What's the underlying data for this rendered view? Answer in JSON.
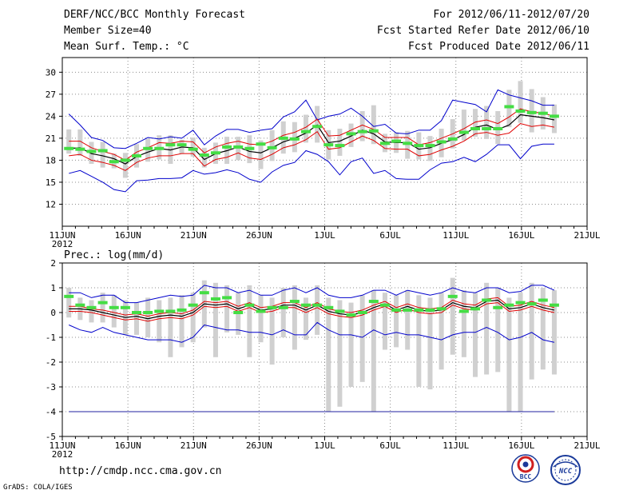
{
  "header": {
    "title": "DERF/NCC/BCC Monthly Forecast",
    "member_size": "Member Size=40",
    "variable": "Mean Surf. Temp.: °C",
    "period": "For 2012/06/11-2012/07/20",
    "started": "Fcst Started Refer Date 2012/06/10",
    "produced": "Fcst Produced Date 2012/06/11"
  },
  "footer": {
    "url": "http://cmdp.ncc.cma.gov.cn",
    "credit": "GrADS: COLA/IGES",
    "logo_bcc": "BCC",
    "logo_ncc": "NCC"
  },
  "colors": {
    "mean": "#000000",
    "spread": "#e00000",
    "extremes": "#0000cc",
    "obs": "#44dd44",
    "box": "#d0d0d0",
    "grid": "#8c8c8c"
  },
  "chart_data": [
    {
      "type": "line",
      "name": "temperature",
      "title": "Mean Surf. Temp.: °C",
      "x_labels": [
        "11JUN",
        "16JUN",
        "21JUN",
        "26JUN",
        "1JUL",
        "6JUL",
        "11JUL",
        "16JUL",
        "21JUL"
      ],
      "x_year": "2012",
      "xlim": [
        0,
        40
      ],
      "ylim": [
        9,
        32
      ],
      "yticks": [
        12,
        15,
        18,
        21,
        24,
        27,
        30
      ],
      "series": [
        {
          "name": "mean",
          "values": [
            19.6,
            19.7,
            18.9,
            18.6,
            18.2,
            17.5,
            18.5,
            19.1,
            19.6,
            19.4,
            19.8,
            19.7,
            18.1,
            18.9,
            19.3,
            19.8,
            19.2,
            19.0,
            19.7,
            20.5,
            21.0,
            21.7,
            22.8,
            20.4,
            20.6,
            21.3,
            22.1,
            21.6,
            20.5,
            20.4,
            20.4,
            19.5,
            19.7,
            20.3,
            20.8,
            21.5,
            22.5,
            22.8,
            22.2,
            22.8,
            24.2,
            24.0,
            23.8,
            23.5
          ]
        },
        {
          "name": "upper",
          "values": [
            20.6,
            20.6,
            19.7,
            19.2,
            18.8,
            18.0,
            19.1,
            19.7,
            20.4,
            20.3,
            20.6,
            20.5,
            19.0,
            19.8,
            20.3,
            20.6,
            20.2,
            20.1,
            20.6,
            21.4,
            21.8,
            22.5,
            23.6,
            21.3,
            21.4,
            22.1,
            22.8,
            22.2,
            21.1,
            21.1,
            21.1,
            20.1,
            20.4,
            21.0,
            21.6,
            22.3,
            23.2,
            23.5,
            23.0,
            23.9,
            25.0,
            24.6,
            24.4,
            24.0
          ]
        },
        {
          "name": "lower",
          "values": [
            18.6,
            18.8,
            18.0,
            17.7,
            17.3,
            16.6,
            17.7,
            18.3,
            18.6,
            18.6,
            18.9,
            18.9,
            17.2,
            18.1,
            18.4,
            19.0,
            18.3,
            18.1,
            18.8,
            19.7,
            20.1,
            20.8,
            21.9,
            19.5,
            19.7,
            20.5,
            21.3,
            20.7,
            19.6,
            19.5,
            19.5,
            18.6,
            18.8,
            19.4,
            19.9,
            20.6,
            21.6,
            21.8,
            21.4,
            21.7,
            23.0,
            22.6,
            22.8,
            22.5
          ]
        },
        {
          "name": "max",
          "values": [
            24.3,
            22.8,
            21.1,
            20.7,
            19.7,
            19.6,
            20.3,
            21.1,
            20.9,
            21.2,
            21.0,
            22.1,
            20.1,
            21.3,
            22.2,
            22.2,
            21.8,
            22.1,
            22.3,
            23.9,
            24.6,
            26.2,
            23.5,
            24.0,
            24.3,
            25.1,
            24.0,
            22.6,
            22.9,
            21.7,
            21.6,
            22.1,
            22.1,
            23.4,
            26.2,
            25.9,
            25.6,
            24.6,
            27.6,
            26.9,
            26.5,
            26.1,
            25.5,
            25.5
          ]
        },
        {
          "name": "min",
          "values": [
            16.2,
            16.6,
            15.8,
            15.0,
            14.0,
            13.7,
            15.2,
            15.3,
            15.5,
            15.5,
            15.6,
            16.6,
            16.1,
            16.3,
            16.7,
            16.3,
            15.4,
            15.0,
            16.4,
            17.3,
            17.7,
            19.3,
            18.8,
            17.8,
            16.0,
            17.8,
            18.3,
            16.2,
            16.6,
            15.5,
            15.4,
            15.4,
            16.7,
            17.6,
            17.8,
            18.4,
            17.8,
            18.8,
            20.1,
            20.1,
            18.2,
            19.9,
            20.2,
            20.2
          ]
        },
        {
          "name": "box_high",
          "values": [
            22.2,
            22.2,
            20.5,
            20.5,
            18.9,
            19.0,
            20.2,
            20.9,
            21.4,
            21.4,
            20.8,
            21.1,
            19.7,
            20.4,
            21.2,
            21.2,
            21.4,
            20.7,
            22.1,
            23.3,
            23.2,
            24.2,
            25.4,
            22.1,
            22.3,
            23.0,
            24.7,
            25.5,
            21.6,
            21.8,
            22.0,
            21.8,
            21.3,
            22.3,
            23.6,
            24.9,
            25.0,
            25.4,
            24.7,
            27.6,
            28.8,
            27.7,
            26.6,
            25.6
          ]
        },
        {
          "name": "box_low",
          "values": [
            18.9,
            18.6,
            17.5,
            17.0,
            16.9,
            15.6,
            17.0,
            17.8,
            18.1,
            17.5,
            18.9,
            18.5,
            17.0,
            17.5,
            17.5,
            18.0,
            17.6,
            16.8,
            17.9,
            18.9,
            19.1,
            20.4,
            20.4,
            18.1,
            18.6,
            19.8,
            20.6,
            20.2,
            19.1,
            19.0,
            18.2,
            18.1,
            17.9,
            18.4,
            19.6,
            20.7,
            21.2,
            20.9,
            20.2,
            22.5,
            23.1,
            21.8,
            22.2,
            21.7
          ]
        },
        {
          "name": "obs",
          "values": [
            19.6,
            19.5,
            19.2,
            19.3,
            17.8,
            18.0,
            18.6,
            19.6,
            19.6,
            20.1,
            20.1,
            19.5,
            18.7,
            19.0,
            19.8,
            19.8,
            19.6,
            20.2,
            19.7,
            21.0,
            20.9,
            21.9,
            22.6,
            20.1,
            20.0,
            21.6,
            21.9,
            22.0,
            20.3,
            20.6,
            20.3,
            20.0,
            20.0,
            20.5,
            20.9,
            21.8,
            22.3,
            22.3,
            22.3,
            25.3,
            24.7,
            24.5,
            24.4,
            24.0
          ]
        }
      ]
    },
    {
      "type": "line",
      "name": "precipitation",
      "title": "Prec.: log(mm/d)",
      "x_labels": [
        "11JUN",
        "16JUN",
        "21JUN",
        "26JUN",
        "1JUL",
        "6JUL",
        "11JUL",
        "16JUL",
        "21JUL"
      ],
      "x_year": "2012",
      "xlim": [
        0,
        40
      ],
      "ylim": [
        -5,
        2
      ],
      "yticks": [
        -5,
        -4,
        -3,
        -2,
        -1,
        0,
        1,
        2
      ],
      "series": [
        {
          "name": "mean",
          "values": [
            0.15,
            0.15,
            0.1,
            0.0,
            -0.1,
            -0.2,
            -0.15,
            -0.25,
            -0.15,
            -0.1,
            -0.15,
            0.0,
            0.35,
            0.3,
            0.35,
            0.15,
            0.3,
            0.1,
            0.15,
            0.3,
            0.3,
            0.1,
            0.3,
            0.05,
            -0.05,
            -0.1,
            0.0,
            0.2,
            0.35,
            0.1,
            0.25,
            0.1,
            0.05,
            0.1,
            0.4,
            0.25,
            0.2,
            0.45,
            0.5,
            0.15,
            0.2,
            0.35,
            0.2,
            0.1
          ]
        },
        {
          "name": "upper",
          "values": [
            0.25,
            0.25,
            0.15,
            0.1,
            0.0,
            -0.1,
            -0.05,
            -0.15,
            -0.05,
            0.0,
            -0.05,
            0.1,
            0.45,
            0.4,
            0.45,
            0.25,
            0.4,
            0.2,
            0.25,
            0.4,
            0.4,
            0.2,
            0.4,
            0.15,
            0.05,
            0.0,
            0.1,
            0.3,
            0.45,
            0.2,
            0.35,
            0.2,
            0.15,
            0.2,
            0.5,
            0.35,
            0.3,
            0.55,
            0.6,
            0.25,
            0.3,
            0.45,
            0.3,
            0.2
          ]
        },
        {
          "name": "lower",
          "values": [
            0.05,
            0.05,
            0.0,
            -0.1,
            -0.2,
            -0.3,
            -0.25,
            -0.35,
            -0.25,
            -0.2,
            -0.25,
            -0.1,
            0.25,
            0.2,
            0.25,
            0.05,
            0.2,
            0.0,
            0.05,
            0.2,
            0.2,
            0.0,
            0.2,
            -0.05,
            -0.15,
            -0.2,
            -0.1,
            0.1,
            0.25,
            0.0,
            0.15,
            0.0,
            -0.05,
            0.0,
            0.3,
            0.15,
            0.1,
            0.35,
            0.4,
            0.05,
            0.1,
            0.25,
            0.1,
            0.0
          ]
        },
        {
          "name": "max",
          "values": [
            0.8,
            0.8,
            0.6,
            0.7,
            0.7,
            0.4,
            0.4,
            0.5,
            0.6,
            0.7,
            0.65,
            0.7,
            1.1,
            1.0,
            1.0,
            0.8,
            0.9,
            0.7,
            0.7,
            0.9,
            1.0,
            0.8,
            1.0,
            0.7,
            0.6,
            0.6,
            0.7,
            0.9,
            0.9,
            0.7,
            0.9,
            0.8,
            0.7,
            0.8,
            1.0,
            0.85,
            0.8,
            1.0,
            1.0,
            0.8,
            0.85,
            1.1,
            1.1,
            0.9
          ]
        },
        {
          "name": "min",
          "values": [
            -0.5,
            -0.7,
            -0.8,
            -0.6,
            -0.8,
            -0.9,
            -1.0,
            -1.1,
            -1.1,
            -1.1,
            -1.2,
            -1.0,
            -0.5,
            -0.6,
            -0.7,
            -0.7,
            -0.8,
            -0.8,
            -0.9,
            -0.7,
            -0.9,
            -0.9,
            -0.4,
            -0.7,
            -0.9,
            -0.9,
            -1.0,
            -0.7,
            -0.9,
            -0.8,
            -0.9,
            -0.9,
            -1.0,
            -1.1,
            -0.9,
            -0.8,
            -0.8,
            -0.6,
            -0.8,
            -1.1,
            -1.0,
            -0.8,
            -1.1,
            -1.2
          ]
        },
        {
          "name": "box_high",
          "values": [
            1.0,
            0.6,
            0.5,
            0.8,
            0.7,
            0.5,
            0.4,
            0.6,
            0.5,
            0.6,
            0.7,
            0.8,
            1.3,
            1.2,
            1.1,
            0.8,
            1.1,
            0.7,
            0.6,
            1.0,
            1.1,
            0.6,
            1.1,
            0.6,
            0.5,
            0.4,
            0.7,
            0.9,
            0.8,
            0.7,
            0.9,
            0.7,
            0.6,
            0.8,
            1.4,
            0.9,
            0.8,
            1.2,
            1.0,
            0.6,
            0.8,
            1.2,
            1.0,
            0.9
          ]
        },
        {
          "name": "box_low",
          "values": [
            -0.2,
            -0.3,
            -0.4,
            -0.4,
            -0.6,
            -0.9,
            -0.9,
            -1.0,
            -1.2,
            -1.8,
            -1.4,
            -1.2,
            -0.6,
            -1.8,
            -0.8,
            -0.9,
            -1.8,
            -1.2,
            -2.1,
            -1.0,
            -1.5,
            -1.1,
            -0.9,
            -4.0,
            -3.8,
            -3.0,
            -2.8,
            -4.0,
            -1.5,
            -1.4,
            -1.5,
            -3.0,
            -3.1,
            -2.3,
            -1.7,
            -1.8,
            -2.6,
            -2.5,
            -2.4,
            -4.0,
            -4.0,
            -2.7,
            -2.3,
            -2.5
          ]
        },
        {
          "name": "obs",
          "values": [
            0.65,
            0.3,
            0.2,
            0.4,
            0.2,
            0.2,
            0.0,
            0.0,
            0.05,
            0.05,
            0.1,
            0.3,
            0.8,
            0.55,
            0.6,
            0.0,
            0.3,
            0.05,
            0.2,
            0.2,
            0.45,
            0.3,
            0.3,
            0.2,
            0.05,
            -0.1,
            0.0,
            0.45,
            0.3,
            0.1,
            0.1,
            0.1,
            0.1,
            0.15,
            0.65,
            0.05,
            0.15,
            0.5,
            0.2,
            0.3,
            0.4,
            0.35,
            0.5,
            0.3
          ]
        },
        {
          "name": "floor",
          "values": [
            -4,
            -4,
            -4,
            -4,
            -4,
            -4,
            -4,
            -4,
            -4,
            -4,
            -4,
            -4,
            -4,
            -4,
            -4,
            -4,
            -4,
            -4,
            -4,
            -4,
            -4,
            -4,
            -4,
            -4,
            -4,
            -4,
            -4,
            -4,
            -4,
            -4,
            -4,
            -4,
            -4,
            -4,
            -4,
            -4,
            -4,
            -4,
            -4,
            -4,
            -4,
            -4,
            -4,
            -4
          ]
        }
      ]
    }
  ]
}
